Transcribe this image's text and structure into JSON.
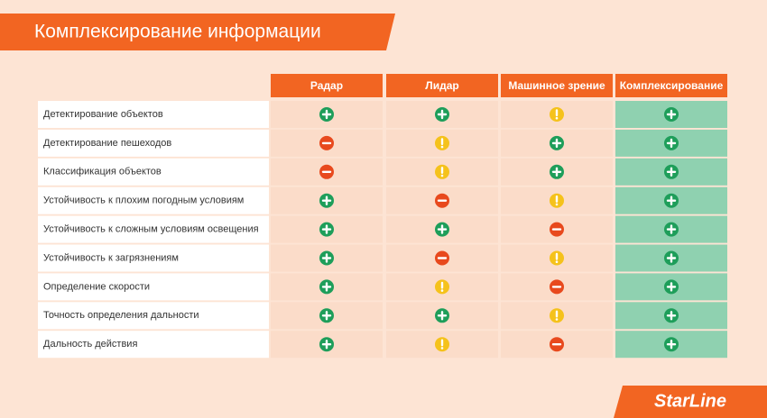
{
  "header": {
    "title": "Комплексирование информации"
  },
  "table": {
    "columns": [
      "Радар",
      "Лидар",
      "Машинное зрение",
      "Комплексирование"
    ],
    "rows": [
      {
        "label": "Детектирование объектов",
        "cells": [
          "plus",
          "plus",
          "warn",
          "plus"
        ]
      },
      {
        "label": "Детектирование пешеходов",
        "cells": [
          "minus",
          "warn",
          "plus",
          "plus"
        ]
      },
      {
        "label": "Классификация объектов",
        "cells": [
          "minus",
          "warn",
          "plus",
          "plus"
        ]
      },
      {
        "label": "Устойчивость к плохим погодным условиям",
        "cells": [
          "plus",
          "minus",
          "warn",
          "plus"
        ]
      },
      {
        "label": "Устойчивость к сложным условиям освещения",
        "cells": [
          "plus",
          "plus",
          "minus",
          "plus"
        ]
      },
      {
        "label": "Устойчивость к загрязнениям",
        "cells": [
          "plus",
          "minus",
          "warn",
          "plus"
        ]
      },
      {
        "label": "Определение скорости",
        "cells": [
          "plus",
          "warn",
          "minus",
          "plus"
        ]
      },
      {
        "label": "Точность определения дальности",
        "cells": [
          "plus",
          "plus",
          "warn",
          "plus"
        ]
      },
      {
        "label": "Дальность действия",
        "cells": [
          "plus",
          "warn",
          "minus",
          "plus"
        ]
      }
    ]
  },
  "footer": {
    "brand": "StarLine"
  }
}
